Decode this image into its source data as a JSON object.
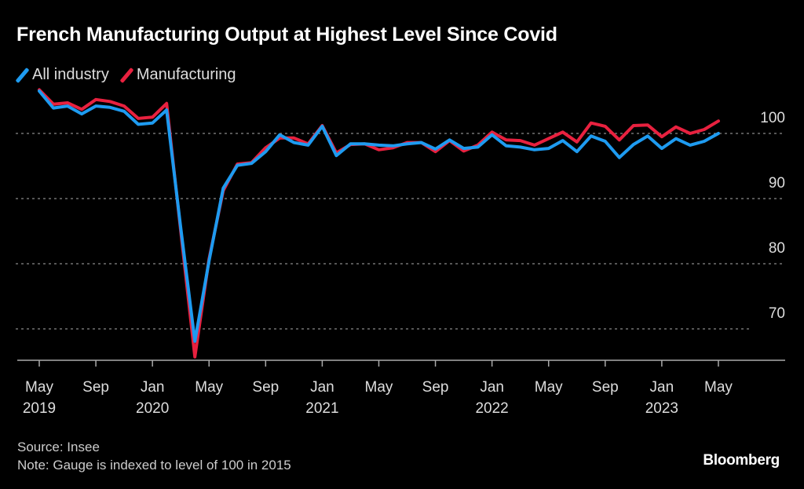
{
  "chart_data": {
    "type": "line",
    "title": "French Manufacturing Output at Highest Level Since Covid",
    "xlabel": "",
    "ylabel": "",
    "ylim": [
      62,
      108
    ],
    "yticks": [
      70,
      80,
      90,
      100
    ],
    "grid": true,
    "legend_position": "top-left",
    "x": [
      "May 2019",
      "Jun 2019",
      "Jul 2019",
      "Aug 2019",
      "Sep 2019",
      "Oct 2019",
      "Nov 2019",
      "Dec 2019",
      "Jan 2020",
      "Feb 2020",
      "Mar 2020",
      "Apr 2020",
      "May 2020",
      "Jun 2020",
      "Jul 2020",
      "Aug 2020",
      "Sep 2020",
      "Oct 2020",
      "Nov 2020",
      "Dec 2020",
      "Jan 2021",
      "Feb 2021",
      "Mar 2021",
      "Apr 2021",
      "May 2021",
      "Jun 2021",
      "Jul 2021",
      "Aug 2021",
      "Sep 2021",
      "Oct 2021",
      "Nov 2021",
      "Dec 2021",
      "Jan 2022",
      "Feb 2022",
      "Mar 2022",
      "Apr 2022",
      "May 2022",
      "Jun 2022",
      "Jul 2022",
      "Aug 2022",
      "Sep 2022",
      "Oct 2022",
      "Nov 2022",
      "Dec 2022",
      "Jan 2023",
      "Feb 2023",
      "Mar 2023",
      "Apr 2023",
      "May 2023"
    ],
    "xticks": [
      {
        "index": 0,
        "month": "May",
        "year": "2019"
      },
      {
        "index": 4,
        "month": "Sep",
        "year": ""
      },
      {
        "index": 8,
        "month": "Jan",
        "year": "2020"
      },
      {
        "index": 12,
        "month": "May",
        "year": ""
      },
      {
        "index": 16,
        "month": "Sep",
        "year": ""
      },
      {
        "index": 20,
        "month": "Jan",
        "year": "2021"
      },
      {
        "index": 24,
        "month": "May",
        "year": ""
      },
      {
        "index": 28,
        "month": "Sep",
        "year": ""
      },
      {
        "index": 32,
        "month": "Jan",
        "year": "2022"
      },
      {
        "index": 36,
        "month": "May",
        "year": ""
      },
      {
        "index": 40,
        "month": "Sep",
        "year": ""
      },
      {
        "index": 44,
        "month": "Jan",
        "year": "2023"
      },
      {
        "index": 48,
        "month": "May",
        "year": ""
      }
    ],
    "series": [
      {
        "name": "Manufacturing",
        "color": "#e8213f",
        "values": [
          106.7,
          104.5,
          104.7,
          103.7,
          105.2,
          104.9,
          104.2,
          102.3,
          102.5,
          104.6,
          85.0,
          65.7,
          80.7,
          91.2,
          95.3,
          95.5,
          97.8,
          99.3,
          99.3,
          98.4,
          101.2,
          97.0,
          98.3,
          98.4,
          97.5,
          97.8,
          98.6,
          98.6,
          97.2,
          98.9,
          97.3,
          98.2,
          100.2,
          99.0,
          98.9,
          98.2,
          99.2,
          100.2,
          98.7,
          101.6,
          101.1,
          99.0,
          101.2,
          101.3,
          99.5,
          101.0,
          100.0,
          100.6,
          101.9
        ]
      },
      {
        "name": "All industry",
        "color": "#1e9bf0",
        "values": [
          106.5,
          103.9,
          104.2,
          103.0,
          104.2,
          104.0,
          103.4,
          101.4,
          101.6,
          103.6,
          85.5,
          68.1,
          80.4,
          91.6,
          95.1,
          95.4,
          97.2,
          99.8,
          98.6,
          98.2,
          101.1,
          96.6,
          98.4,
          98.4,
          98.2,
          98.1,
          98.4,
          98.6,
          97.6,
          99.0,
          97.7,
          97.9,
          99.8,
          98.1,
          97.9,
          97.5,
          97.7,
          98.9,
          97.2,
          99.6,
          98.8,
          96.3,
          98.3,
          99.6,
          97.7,
          99.2,
          98.2,
          98.8,
          100.0
        ]
      }
    ]
  },
  "legend": [
    {
      "label": "All industry",
      "color": "#1e9bf0"
    },
    {
      "label": "Manufacturing",
      "color": "#e8213f"
    }
  ],
  "footer": {
    "source": "Source: Insee",
    "note": "Note: Gauge is indexed to level of 100 in 2015"
  },
  "brand": "Bloomberg"
}
